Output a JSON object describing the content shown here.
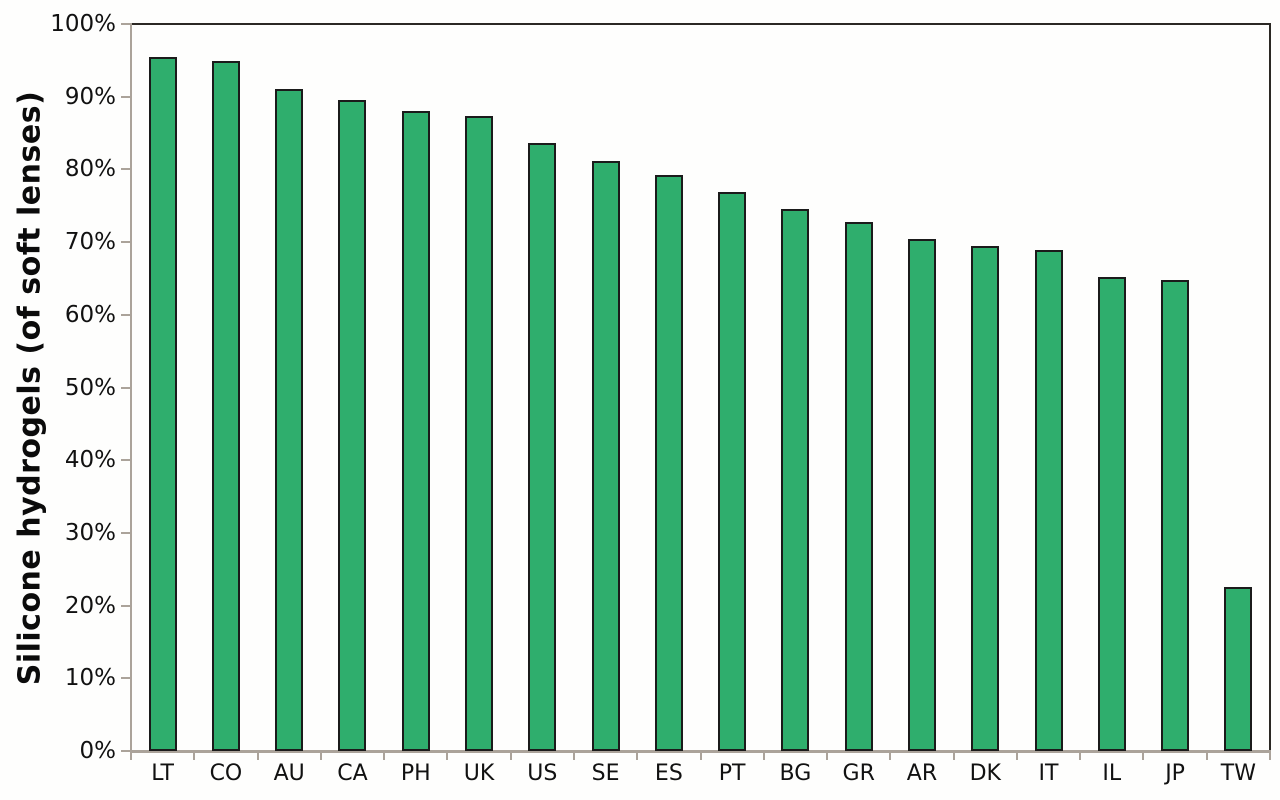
{
  "chart_data": {
    "type": "bar",
    "title": "",
    "xlabel": "",
    "ylabel": "Silicone hydrogels (of soft lenses)",
    "categories": [
      "LT",
      "CO",
      "AU",
      "CA",
      "PH",
      "UK",
      "US",
      "SE",
      "ES",
      "PT",
      "BG",
      "GR",
      "AR",
      "DK",
      "IT",
      "IL",
      "JP",
      "TW"
    ],
    "values": [
      95.5,
      94.9,
      91.0,
      89.6,
      88.1,
      87.3,
      83.7,
      81.2,
      79.3,
      76.9,
      74.6,
      72.7,
      70.4,
      69.4,
      68.9,
      65.2,
      64.8,
      22.6
    ],
    "y_tick_labels": [
      "0%",
      "10%",
      "20%",
      "30%",
      "40%",
      "50%",
      "60%",
      "70%",
      "80%",
      "90%",
      "100%"
    ],
    "y_tick_values": [
      0,
      10,
      20,
      30,
      40,
      50,
      60,
      70,
      80,
      90,
      100
    ],
    "ylim": [
      0,
      100
    ],
    "grid": "off",
    "legend": "none",
    "colors": {
      "bar_fill": "#2FAE6D",
      "bar_border": "#1B1B1B",
      "frame_dark": "#2B2824",
      "axis_gray": "#ABA39A",
      "text": "#0B0B0B",
      "background": "#FEFEFD"
    }
  }
}
